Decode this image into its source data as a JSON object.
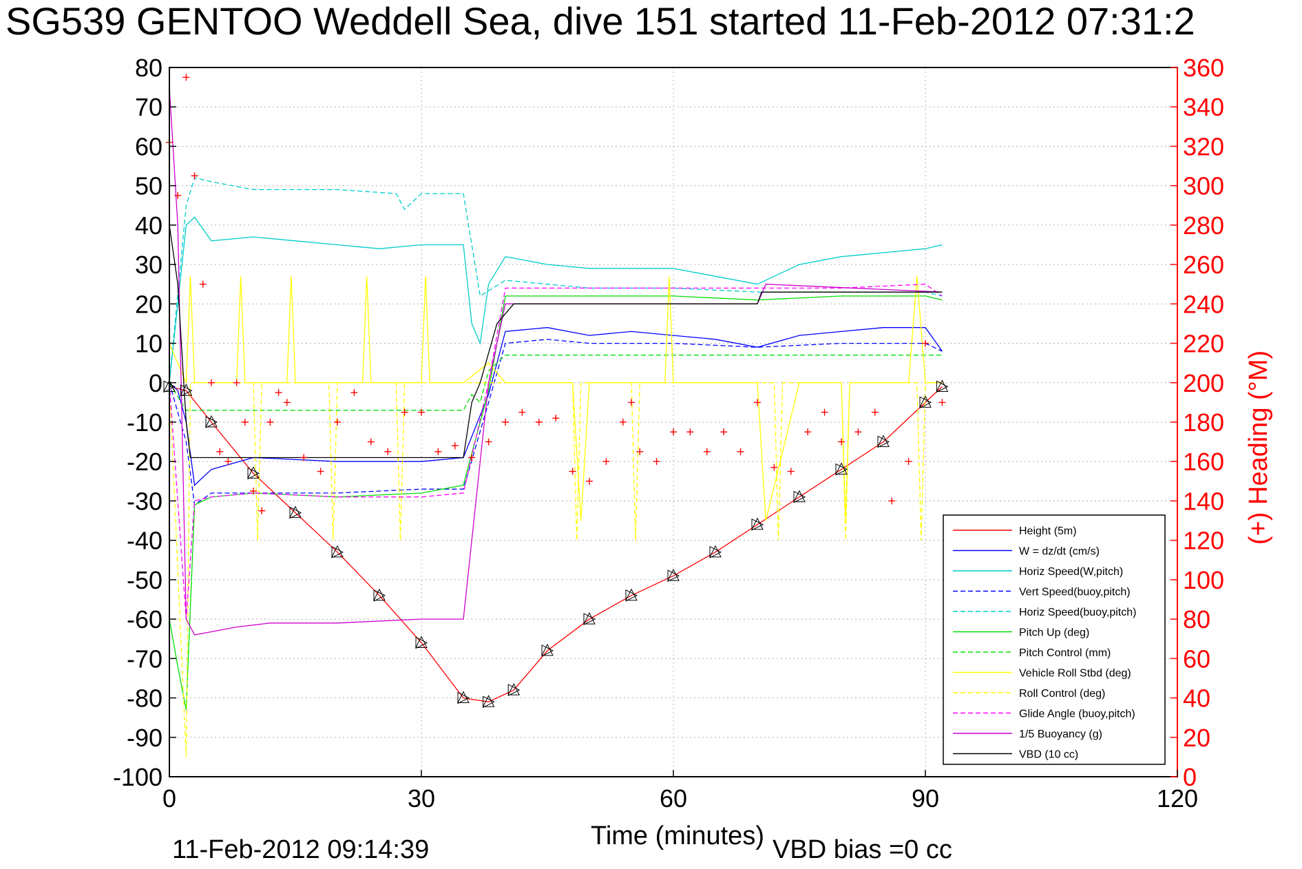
{
  "chart_data": {
    "type": "line",
    "title": "SG539 GENTOO Weddell Sea, dive 151 started 11-Feb-2012 07:31:2",
    "xlabel": "Time (minutes)",
    "ylabel": "",
    "y2label": "(+) Heading (°M)",
    "xlim": [
      0,
      120
    ],
    "ylim": [
      -100,
      80
    ],
    "y2lim": [
      0,
      360
    ],
    "xticks": [
      "0",
      "30",
      "60",
      "90",
      "120"
    ],
    "yticks": [
      "80",
      "70",
      "60",
      "50",
      "40",
      "30",
      "20",
      "10",
      "0",
      "-10",
      "-20",
      "-30",
      "-40",
      "-50",
      "-60",
      "-70",
      "-80",
      "-90",
      "-100"
    ],
    "y2ticks": [
      "360",
      "340",
      "320",
      "300",
      "280",
      "260",
      "240",
      "220",
      "200",
      "180",
      "160",
      "140",
      "120",
      "100",
      "80",
      "60",
      "40",
      "20",
      "0"
    ],
    "grid": true,
    "legend_position": "bottom-right",
    "footer_left": "11-Feb-2012 09:14:39",
    "footer_right": "VBD bias =0 cc",
    "colors": {
      "axis": "#000000",
      "heading": "#ff0000",
      "grid": "#b0b0b0"
    },
    "series": [
      {
        "name": "Height (5m)",
        "color": "#ff0000",
        "dash": "solid",
        "x": [
          0,
          2,
          5,
          10,
          15,
          20,
          25,
          30,
          35,
          38,
          41,
          45,
          50,
          55,
          60,
          65,
          70,
          75,
          80,
          85,
          90,
          92
        ],
        "y": [
          -1,
          -2,
          -10,
          -23,
          -33,
          -43,
          -54,
          -66,
          -80,
          -81,
          -78,
          -68,
          -60,
          -54,
          -49,
          -43,
          -36,
          -29,
          -22,
          -15,
          -5,
          -1
        ]
      },
      {
        "name": "W = dz/dt (cm/s)",
        "color": "#0000ff",
        "dash": "solid",
        "x": [
          0,
          1,
          2,
          3,
          5,
          10,
          20,
          30,
          35,
          38,
          40,
          45,
          50,
          55,
          60,
          65,
          70,
          75,
          80,
          85,
          90,
          92
        ],
        "y": [
          0,
          -2,
          -10,
          -26,
          -22,
          -19,
          -20,
          -20,
          -19,
          -3,
          13,
          14,
          12,
          13,
          12,
          11,
          9,
          12,
          13,
          14,
          14,
          8
        ]
      },
      {
        "name": "Horiz Speed(W,pitch)",
        "color": "#00cccc",
        "dash": "solid",
        "x": [
          0,
          1,
          2,
          3,
          5,
          10,
          15,
          20,
          25,
          30,
          35,
          36,
          37,
          38,
          40,
          45,
          50,
          55,
          60,
          65,
          70,
          75,
          80,
          85,
          90,
          92
        ],
        "y": [
          0,
          20,
          40,
          42,
          36,
          37,
          36,
          35,
          34,
          35,
          35,
          15,
          10,
          25,
          32,
          30,
          29,
          29,
          29,
          27,
          25,
          30,
          32,
          33,
          34,
          35
        ]
      },
      {
        "name": "Vert Speed(buoy,pitch)",
        "color": "#0000ff",
        "dash": "dashed",
        "x": [
          0,
          2,
          3,
          5,
          10,
          20,
          30,
          35,
          38,
          40,
          45,
          50,
          60,
          70,
          80,
          90,
          92
        ],
        "y": [
          0,
          -15,
          -31,
          -28,
          -28,
          -28,
          -27,
          -27,
          -5,
          10,
          11,
          10,
          10,
          9,
          10,
          10,
          8
        ]
      },
      {
        "name": "Horiz Speed(buoy,pitch)",
        "color": "#00cccc",
        "dash": "dashed",
        "x": [
          0,
          2,
          3,
          5,
          10,
          20,
          27,
          28,
          30,
          35,
          37,
          40,
          45,
          50,
          60,
          70,
          80,
          90,
          92
        ],
        "y": [
          0,
          45,
          52,
          51,
          49,
          49,
          48,
          44,
          48,
          48,
          22,
          26,
          25,
          24,
          24,
          23,
          23,
          23,
          22
        ]
      },
      {
        "name": "Pitch Up (deg)",
        "color": "#00dd00",
        "dash": "solid",
        "x": [
          0,
          1,
          2,
          3,
          5,
          10,
          20,
          30,
          35,
          38,
          40,
          45,
          50,
          60,
          70,
          80,
          90,
          92
        ],
        "y": [
          -60,
          -72,
          -83,
          -31,
          -29,
          -28,
          -29,
          -28,
          -26,
          -2,
          22,
          22,
          22,
          22,
          21,
          22,
          22,
          21
        ]
      },
      {
        "name": "Pitch Control (mm)",
        "color": "#00dd00",
        "dash": "dashed",
        "x": [
          0,
          2,
          3,
          35,
          36,
          37,
          38,
          40,
          92
        ],
        "y": [
          0,
          -7,
          -7,
          -7,
          -3,
          -5,
          3,
          7,
          7
        ]
      },
      {
        "name": "Vehicle Roll Stbd (deg)",
        "color": "#ffff00",
        "dash": "solid",
        "x": [
          0,
          2,
          2.5,
          3,
          8,
          8.5,
          9,
          14,
          14.5,
          15,
          23,
          23.5,
          24,
          30,
          30.5,
          31,
          35,
          38,
          40,
          48,
          49,
          50,
          52,
          59,
          59.5,
          60,
          70,
          71,
          75,
          80,
          80.5,
          81,
          88,
          89,
          90,
          92
        ],
        "y": [
          10,
          0,
          27,
          0,
          0,
          27,
          0,
          0,
          27,
          0,
          0,
          27,
          0,
          0,
          27,
          0,
          0,
          5,
          0,
          0,
          -35,
          0,
          0,
          0,
          27,
          0,
          0,
          -35,
          0,
          0,
          -35,
          0,
          0,
          27,
          0,
          0
        ]
      },
      {
        "name": "Roll Control (deg)",
        "color": "#ffff00",
        "dash": "dashed",
        "x": [
          0,
          2,
          2.5,
          3,
          10,
          10.5,
          11,
          19,
          19.5,
          20,
          27,
          27.5,
          28,
          35,
          40,
          48,
          48.5,
          49,
          55,
          55.5,
          56,
          72,
          72.5,
          73,
          80,
          80.5,
          81,
          89,
          89.5,
          90,
          92
        ],
        "y": [
          0,
          -95,
          0,
          0,
          0,
          -40,
          0,
          0,
          -40,
          0,
          0,
          -40,
          0,
          0,
          0,
          0,
          -40,
          0,
          0,
          -40,
          0,
          0,
          -40,
          0,
          0,
          -40,
          0,
          0,
          -40,
          0,
          0
        ]
      },
      {
        "name": "Glide Angle (buoy,pitch)",
        "color": "#ff00ff",
        "dash": "dashed",
        "x": [
          0,
          2,
          3,
          5,
          10,
          20,
          30,
          35,
          38,
          40,
          45,
          50,
          60,
          70,
          80,
          90,
          92
        ],
        "y": [
          0,
          -60,
          -30,
          -29,
          -28,
          -29,
          -29,
          -28,
          0,
          24,
          24,
          24,
          24,
          24,
          24,
          25,
          22
        ]
      },
      {
        "name": "1/5 Buoyancy (g)",
        "color": "#cc00cc",
        "dash": "solid",
        "x": [
          0,
          1,
          2,
          3,
          8,
          12,
          20,
          30,
          35,
          38,
          40,
          70,
          71,
          92
        ],
        "y": [
          75,
          40,
          -60,
          -64,
          -62,
          -61,
          -61,
          -60,
          -60,
          0,
          20,
          20,
          25,
          23
        ]
      },
      {
        "name": "VBD (10 cc)",
        "color": "#000000",
        "dash": "solid",
        "x": [
          0,
          1,
          2,
          2.5,
          35,
          36,
          37,
          39,
          41,
          70,
          70.5,
          92
        ],
        "y": [
          40,
          25,
          -10,
          -19,
          -19,
          -5,
          0,
          15,
          20,
          20,
          23,
          23
        ]
      }
    ],
    "heading": {
      "name": "(+) Heading (°M)",
      "color": "#ff0000",
      "marker": "+",
      "x": [
        0,
        1,
        2,
        3,
        4,
        5,
        6,
        7,
        8,
        9,
        10,
        11,
        12,
        13,
        14,
        16,
        18,
        20,
        22,
        24,
        26,
        28,
        30,
        32,
        34,
        36,
        38,
        40,
        42,
        44,
        46,
        48,
        50,
        52,
        54,
        55,
        56,
        58,
        60,
        62,
        64,
        66,
        68,
        70,
        72,
        74,
        76,
        78,
        80,
        82,
        84,
        86,
        88,
        90,
        92
      ],
      "y": [
        322,
        295,
        355,
        305,
        250,
        200,
        165,
        160,
        200,
        180,
        145,
        135,
        180,
        195,
        190,
        162,
        155,
        180,
        195,
        170,
        165,
        185,
        185,
        165,
        168,
        162,
        170,
        180,
        185,
        180,
        182,
        155,
        150,
        160,
        180,
        190,
        165,
        160,
        175,
        175,
        165,
        175,
        165,
        190,
        157,
        155,
        175,
        185,
        170,
        175,
        185,
        140,
        160,
        220,
        190
      ]
    }
  },
  "legend_entries": [
    "Height (5m)",
    "W = dz/dt (cm/s)",
    "Horiz Speed(W,pitch)",
    "Vert Speed(buoy,pitch)",
    "Horiz Speed(buoy,pitch)",
    "Pitch Up (deg)",
    "Pitch Control (mm)",
    "Vehicle Roll Stbd (deg)",
    "Roll Control (deg)",
    "Glide Angle (buoy,pitch)",
    "1/5 Buoyancy (g)",
    "VBD (10 cc)"
  ],
  "footer": {
    "left": "11-Feb-2012 09:14:39",
    "right": "VBD bias =0 cc"
  }
}
